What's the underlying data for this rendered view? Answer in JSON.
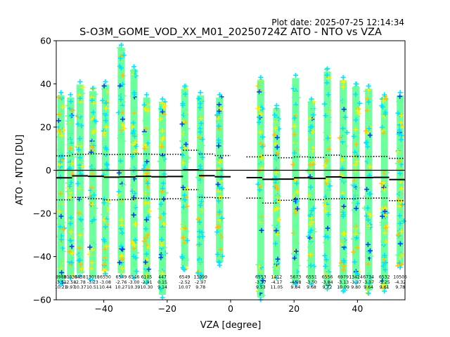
{
  "header": {
    "plot_date": "Plot date: 2025-07-25 12:14:34",
    "title": "S-O3M_GOME_VOD_XX_M01_20250724Z ATO - NTO vs VZA"
  },
  "chart_data": {
    "type": "scatter",
    "xlabel": "VZA [degree]",
    "ylabel": "ATO - NTO [DU]",
    "xlim": [
      -55,
      55
    ],
    "ylim": [
      -60,
      60
    ],
    "xticks": [
      -40,
      -20,
      0,
      20,
      40
    ],
    "yticks": [
      -60,
      -40,
      -20,
      0,
      20,
      40,
      60
    ],
    "grid": false,
    "marker": "+",
    "density_colors": [
      "#66ff99",
      "#00e5ff",
      "#ffee00",
      "#ffc000",
      "#0044ee"
    ],
    "zero_line": 0,
    "columns": [
      {
        "x": -53.5,
        "ymin": -53,
        "ymax": 36,
        "n": "8988",
        "mean": "-3.51",
        "std": "10.21"
      },
      {
        "x": -50.5,
        "ymin": -50,
        "ymax": 35,
        "n": "10031",
        "mean": "-2.58",
        "std": "9.97"
      },
      {
        "x": -47.5,
        "ymin": -49,
        "ymax": 41,
        "n": "6458",
        "mean": "-2.78",
        "std": "10.37"
      },
      {
        "x": -43.5,
        "ymin": -51,
        "ymax": 38,
        "n": "13018",
        "mean": "-3.23",
        "std": "10.51"
      },
      {
        "x": -39.5,
        "ymin": -48,
        "ymax": 41,
        "n": "6530",
        "mean": "-3.08",
        "std": "10.44"
      },
      {
        "x": -34.5,
        "ymin": -49,
        "ymax": 58,
        "n": "6549",
        "mean": "-2.76",
        "std": "10.27"
      },
      {
        "x": -30.5,
        "ymin": -50,
        "ymax": 48,
        "n": "6546",
        "mean": "-3.00",
        "std": "10.39"
      },
      {
        "x": -26.5,
        "ymin": -52,
        "ymax": 35,
        "n": "6105",
        "mean": "-2.91",
        "std": "10.30"
      },
      {
        "x": -21.5,
        "ymin": -59,
        "ymax": 33,
        "n": "447",
        "mean": "0.15",
        "std": "9.14"
      },
      {
        "x": -14.5,
        "ymin": -46,
        "ymax": 39,
        "n": "6549",
        "mean": "-2.52",
        "std": "10.07"
      },
      {
        "x": -9.5,
        "ymin": -50,
        "ymax": 36,
        "n": "13099",
        "mean": "-2.97",
        "std": "9.78"
      },
      {
        "x": -3.5,
        "ymin": -44,
        "ymax": 35,
        "n": "",
        "mean": "",
        "std": ""
      },
      {
        "x": 9.5,
        "ymin": -60,
        "ymax": 43,
        "n": "6553",
        "mean": "-3.37",
        "std": "9.53"
      },
      {
        "x": 14.5,
        "ymin": -50,
        "ymax": 30,
        "n": "1412",
        "mean": "-4.17",
        "std": "11.05"
      },
      {
        "x": 20.5,
        "ymin": -53,
        "ymax": 44,
        "n": "5673",
        "mean": "-4.08",
        "std": "9.84"
      },
      {
        "x": 25.5,
        "ymin": -53,
        "ymax": 33,
        "n": "6551",
        "mean": "-3.50",
        "std": "9.68"
      },
      {
        "x": 30.5,
        "ymin": -55,
        "ymax": 47,
        "n": "6556",
        "mean": "-3.84",
        "std": "9.72"
      },
      {
        "x": 35.5,
        "ymin": -56,
        "ymax": 43,
        "n": "6979",
        "mean": "-3.13",
        "std": "10.09"
      },
      {
        "x": 39.5,
        "ymin": -52,
        "ymax": 40,
        "n": "13424",
        "mean": "-3.37",
        "std": "9.80"
      },
      {
        "x": 43.5,
        "ymin": -57,
        "ymax": 39,
        "n": "6734",
        "mean": "-3.37",
        "std": "9.64"
      },
      {
        "x": 48.5,
        "ymin": -56,
        "ymax": 35,
        "n": "6532",
        "mean": "-3.25",
        "std": "9.61"
      },
      {
        "x": 53.5,
        "ymin": -45,
        "ymax": 36,
        "n": "10505",
        "mean": "-4.32",
        "std": "9.78"
      }
    ],
    "mean_line": [
      {
        "x0": -55,
        "x1": -50,
        "y": -3.5
      },
      {
        "x0": -50,
        "x1": -45,
        "y": -2.6
      },
      {
        "x0": -45,
        "x1": -40,
        "y": -2.8
      },
      {
        "x0": -40,
        "x1": -35,
        "y": -3.2
      },
      {
        "x0": -35,
        "x1": -30,
        "y": -3.1
      },
      {
        "x0": -30,
        "x1": -25,
        "y": -2.8
      },
      {
        "x0": -25,
        "x1": -20,
        "y": -3.0
      },
      {
        "x0": -20,
        "x1": -15,
        "y": -2.9
      },
      {
        "x0": -15,
        "x1": -10,
        "y": 0.15
      },
      {
        "x0": -10,
        "x1": -5,
        "y": -2.5
      },
      {
        "x0": -5,
        "x1": 0,
        "y": -3.0
      },
      {
        "x0": 5,
        "x1": 10,
        "y": -3.4
      },
      {
        "x0": 10,
        "x1": 15,
        "y": -4.2
      },
      {
        "x0": 15,
        "x1": 20,
        "y": -4.1
      },
      {
        "x0": 20,
        "x1": 25,
        "y": -3.5
      },
      {
        "x0": 25,
        "x1": 30,
        "y": -3.8
      },
      {
        "x0": 30,
        "x1": 35,
        "y": -3.1
      },
      {
        "x0": 35,
        "x1": 40,
        "y": -3.4
      },
      {
        "x0": 40,
        "x1": 45,
        "y": -3.4
      },
      {
        "x0": 45,
        "x1": 50,
        "y": -3.3
      },
      {
        "x0": 50,
        "x1": 55,
        "y": -4.3
      }
    ],
    "upper_band": [
      {
        "x0": -55,
        "x1": -50,
        "y": 6.7
      },
      {
        "x0": -50,
        "x1": -45,
        "y": 7.4
      },
      {
        "x0": -45,
        "x1": -40,
        "y": 7.6
      },
      {
        "x0": -40,
        "x1": -35,
        "y": 7.3
      },
      {
        "x0": -35,
        "x1": -30,
        "y": 7.4
      },
      {
        "x0": -30,
        "x1": -25,
        "y": 7.5
      },
      {
        "x0": -25,
        "x1": -20,
        "y": 7.4
      },
      {
        "x0": -20,
        "x1": -15,
        "y": 7.4
      },
      {
        "x0": -15,
        "x1": -10,
        "y": 9.3
      },
      {
        "x0": -10,
        "x1": -5,
        "y": 7.5
      },
      {
        "x0": -5,
        "x1": 0,
        "y": 6.8
      },
      {
        "x0": 5,
        "x1": 10,
        "y": 6.2
      },
      {
        "x0": 10,
        "x1": 15,
        "y": 6.9
      },
      {
        "x0": 15,
        "x1": 20,
        "y": 5.8
      },
      {
        "x0": 20,
        "x1": 25,
        "y": 6.2
      },
      {
        "x0": 25,
        "x1": 30,
        "y": 5.9
      },
      {
        "x0": 30,
        "x1": 35,
        "y": 7.0
      },
      {
        "x0": 35,
        "x1": 40,
        "y": 6.4
      },
      {
        "x0": 40,
        "x1": 45,
        "y": 6.3
      },
      {
        "x0": 45,
        "x1": 50,
        "y": 6.4
      },
      {
        "x0": 50,
        "x1": 55,
        "y": 5.5
      }
    ],
    "lower_band": [
      {
        "x0": -55,
        "x1": -50,
        "y": -13.7
      },
      {
        "x0": -50,
        "x1": -45,
        "y": -12.6
      },
      {
        "x0": -45,
        "x1": -40,
        "y": -13.2
      },
      {
        "x0": -40,
        "x1": -35,
        "y": -13.7
      },
      {
        "x0": -35,
        "x1": -30,
        "y": -13.5
      },
      {
        "x0": -30,
        "x1": -25,
        "y": -13.0
      },
      {
        "x0": -25,
        "x1": -20,
        "y": -13.4
      },
      {
        "x0": -20,
        "x1": -15,
        "y": -13.2
      },
      {
        "x0": -15,
        "x1": -10,
        "y": -9.0
      },
      {
        "x0": -10,
        "x1": -5,
        "y": -12.6
      },
      {
        "x0": -5,
        "x1": 0,
        "y": -12.8
      },
      {
        "x0": 5,
        "x1": 10,
        "y": -12.9
      },
      {
        "x0": 10,
        "x1": 15,
        "y": -15.2
      },
      {
        "x0": 15,
        "x1": 20,
        "y": -13.9
      },
      {
        "x0": 20,
        "x1": 25,
        "y": -13.2
      },
      {
        "x0": 25,
        "x1": 30,
        "y": -13.6
      },
      {
        "x0": 30,
        "x1": 35,
        "y": -13.2
      },
      {
        "x0": 35,
        "x1": 40,
        "y": -13.2
      },
      {
        "x0": 40,
        "x1": 45,
        "y": -13.0
      },
      {
        "x0": 45,
        "x1": 50,
        "y": -12.9
      },
      {
        "x0": 50,
        "x1": 55,
        "y": -14.1
      }
    ]
  }
}
